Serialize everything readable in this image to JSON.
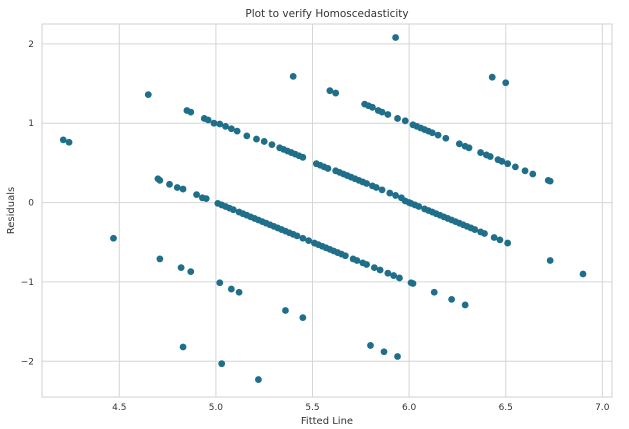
{
  "chart_data": {
    "type": "scatter",
    "title": "Plot to verify Homoscedasticity",
    "xlabel": "Fitted Line",
    "ylabel": "Residuals",
    "xlim": [
      4.1,
      7.05
    ],
    "ylim": [
      -2.45,
      2.25
    ],
    "x_ticks": [
      4.5,
      5.0,
      5.5,
      6.0,
      6.5,
      7.0
    ],
    "x_tick_labels": [
      "4.5",
      "5.0",
      "5.5",
      "6.0",
      "6.5",
      "7.0"
    ],
    "y_ticks": [
      -2,
      -1,
      0,
      1,
      2
    ],
    "y_tick_labels": [
      "−2",
      "−1",
      "0",
      "1",
      "2"
    ],
    "grid": true,
    "marker_color": "#1f6f8b",
    "points": [
      [
        4.21,
        0.79
      ],
      [
        4.24,
        0.76
      ],
      [
        4.47,
        -0.45
      ],
      [
        4.65,
        1.36
      ],
      [
        4.7,
        0.3
      ],
      [
        4.71,
        0.28
      ],
      [
        4.71,
        -0.71
      ],
      [
        4.76,
        0.23
      ],
      [
        4.8,
        0.19
      ],
      [
        4.83,
        0.17
      ],
      [
        4.82,
        -0.82
      ],
      [
        4.87,
        -0.87
      ],
      [
        4.83,
        -1.82
      ],
      [
        4.85,
        1.16
      ],
      [
        4.87,
        1.14
      ],
      [
        4.9,
        0.1
      ],
      [
        4.93,
        0.06
      ],
      [
        4.95,
        0.05
      ],
      [
        4.94,
        1.06
      ],
      [
        4.96,
        1.04
      ],
      [
        4.99,
        1.0
      ],
      [
        5.01,
        -0.01
      ],
      [
        5.02,
        0.99
      ],
      [
        5.05,
        0.96
      ],
      [
        5.08,
        0.93
      ],
      [
        5.11,
        0.9
      ],
      [
        5.16,
        0.84
      ],
      [
        5.03,
        -0.03
      ],
      [
        5.05,
        -0.05
      ],
      [
        5.07,
        -0.07
      ],
      [
        5.09,
        -0.09
      ],
      [
        5.12,
        -0.12
      ],
      [
        5.14,
        -0.14
      ],
      [
        5.16,
        -0.16
      ],
      [
        5.18,
        -0.18
      ],
      [
        5.2,
        -0.2
      ],
      [
        5.22,
        -0.22
      ],
      [
        5.24,
        -0.24
      ],
      [
        5.26,
        -0.26
      ],
      [
        5.28,
        -0.28
      ],
      [
        5.3,
        -0.3
      ],
      [
        5.32,
        -0.32
      ],
      [
        5.34,
        -0.34
      ],
      [
        5.36,
        -0.36
      ],
      [
        5.38,
        -0.38
      ],
      [
        5.4,
        -0.4
      ],
      [
        5.42,
        -0.42
      ],
      [
        5.45,
        -0.45
      ],
      [
        5.48,
        -0.48
      ],
      [
        5.51,
        -0.51
      ],
      [
        5.53,
        -0.53
      ],
      [
        5.55,
        -0.55
      ],
      [
        5.57,
        -0.57
      ],
      [
        5.59,
        -0.59
      ],
      [
        5.61,
        -0.61
      ],
      [
        5.63,
        -0.63
      ],
      [
        5.65,
        -0.65
      ],
      [
        5.67,
        -0.67
      ],
      [
        5.71,
        -0.71
      ],
      [
        5.73,
        -0.73
      ],
      [
        5.76,
        -0.76
      ],
      [
        5.78,
        -0.78
      ],
      [
        5.82,
        -0.82
      ],
      [
        5.85,
        -0.85
      ],
      [
        5.89,
        -0.89
      ],
      [
        5.92,
        -0.92
      ],
      [
        5.95,
        -0.95
      ],
      [
        6.01,
        -1.01
      ],
      [
        6.02,
        -1.02
      ],
      [
        5.02,
        -1.01
      ],
      [
        5.08,
        -1.09
      ],
      [
        5.12,
        -1.13
      ],
      [
        5.03,
        -2.03
      ],
      [
        5.22,
        -2.23
      ],
      [
        5.21,
        0.8
      ],
      [
        5.25,
        0.77
      ],
      [
        5.29,
        0.73
      ],
      [
        5.33,
        0.69
      ],
      [
        5.35,
        0.67
      ],
      [
        5.37,
        0.65
      ],
      [
        5.39,
        0.63
      ],
      [
        5.41,
        0.61
      ],
      [
        5.43,
        0.59
      ],
      [
        5.45,
        0.57
      ],
      [
        5.52,
        0.49
      ],
      [
        5.54,
        0.47
      ],
      [
        5.56,
        0.45
      ],
      [
        5.58,
        0.43
      ],
      [
        5.62,
        0.4
      ],
      [
        5.64,
        0.38
      ],
      [
        5.66,
        0.36
      ],
      [
        5.68,
        0.34
      ],
      [
        5.7,
        0.32
      ],
      [
        5.72,
        0.3
      ],
      [
        5.74,
        0.28
      ],
      [
        5.76,
        0.26
      ],
      [
        5.78,
        0.24
      ],
      [
        5.81,
        0.21
      ],
      [
        5.83,
        0.19
      ],
      [
        5.86,
        0.16
      ],
      [
        5.9,
        0.12
      ],
      [
        5.93,
        0.09
      ],
      [
        5.96,
        0.06
      ],
      [
        5.98,
        0.02
      ],
      [
        6.0,
        0.0
      ],
      [
        6.01,
        -0.01
      ],
      [
        6.03,
        -0.03
      ],
      [
        6.05,
        -0.05
      ],
      [
        6.08,
        -0.08
      ],
      [
        6.1,
        -0.1
      ],
      [
        6.12,
        -0.12
      ],
      [
        6.14,
        -0.14
      ],
      [
        6.16,
        -0.16
      ],
      [
        6.18,
        -0.18
      ],
      [
        6.2,
        -0.2
      ],
      [
        6.22,
        -0.22
      ],
      [
        6.24,
        -0.24
      ],
      [
        6.26,
        -0.26
      ],
      [
        6.28,
        -0.28
      ],
      [
        6.3,
        -0.3
      ],
      [
        6.32,
        -0.32
      ],
      [
        6.34,
        -0.34
      ],
      [
        6.37,
        -0.37
      ],
      [
        6.39,
        -0.39
      ],
      [
        6.44,
        -0.44
      ],
      [
        6.47,
        -0.47
      ],
      [
        6.51,
        -0.51
      ],
      [
        5.36,
        -1.36
      ],
      [
        5.45,
        -1.45
      ],
      [
        5.4,
        1.59
      ],
      [
        5.93,
        2.08
      ],
      [
        5.59,
        1.41
      ],
      [
        5.62,
        1.38
      ],
      [
        5.77,
        1.24
      ],
      [
        5.79,
        1.22
      ],
      [
        5.81,
        1.2
      ],
      [
        5.84,
        1.16
      ],
      [
        5.86,
        1.14
      ],
      [
        5.89,
        1.11
      ],
      [
        5.94,
        1.06
      ],
      [
        5.98,
        1.03
      ],
      [
        6.02,
        0.98
      ],
      [
        6.04,
        0.96
      ],
      [
        6.06,
        0.94
      ],
      [
        6.08,
        0.92
      ],
      [
        6.1,
        0.9
      ],
      [
        6.12,
        0.88
      ],
      [
        6.15,
        0.85
      ],
      [
        6.19,
        0.81
      ],
      [
        6.26,
        0.74
      ],
      [
        6.29,
        0.71
      ],
      [
        6.31,
        0.69
      ],
      [
        6.37,
        0.63
      ],
      [
        6.4,
        0.6
      ],
      [
        6.42,
        0.58
      ],
      [
        6.46,
        0.54
      ],
      [
        6.48,
        0.52
      ],
      [
        6.51,
        0.49
      ],
      [
        6.55,
        0.45
      ],
      [
        6.6,
        0.4
      ],
      [
        6.64,
        0.36
      ],
      [
        6.72,
        0.28
      ],
      [
        6.73,
        0.27
      ],
      [
        6.43,
        1.58
      ],
      [
        6.5,
        1.51
      ],
      [
        5.8,
        -1.8
      ],
      [
        5.87,
        -1.88
      ],
      [
        5.94,
        -1.94
      ],
      [
        6.13,
        -1.13
      ],
      [
        6.22,
        -1.22
      ],
      [
        6.29,
        -1.29
      ],
      [
        6.73,
        -0.73
      ],
      [
        6.9,
        -0.9
      ]
    ]
  }
}
